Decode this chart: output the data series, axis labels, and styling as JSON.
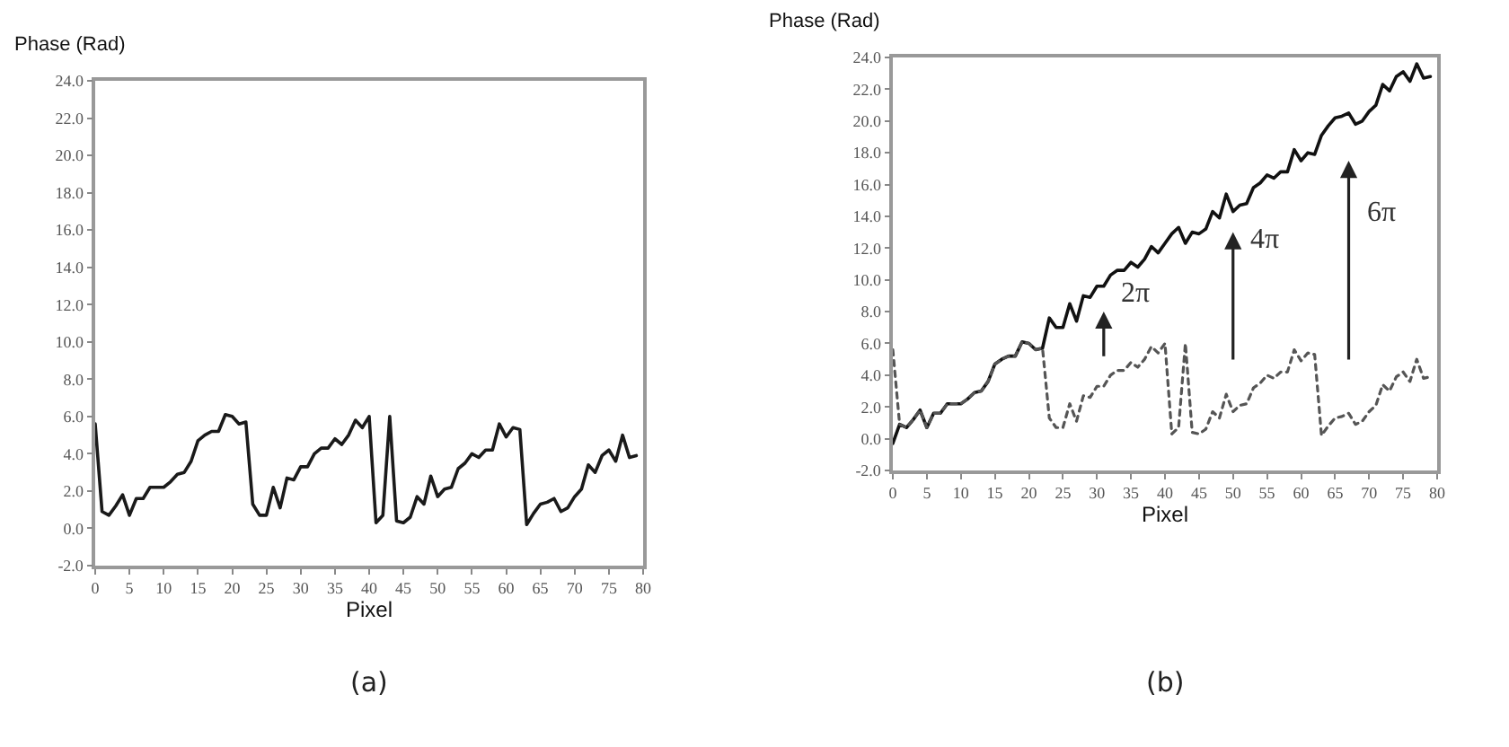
{
  "chart_data": [
    {
      "type": "line",
      "ylabel": "Phase (Rad)",
      "xlabel": "Pixel",
      "annotations": [
        "(a)"
      ],
      "grid": false,
      "marker": "none",
      "line_style": "solid",
      "x": [
        0,
        1,
        2,
        3,
        4,
        5,
        6,
        7,
        8,
        9,
        10,
        11,
        12,
        13,
        14,
        15,
        16,
        17,
        18,
        19,
        20,
        21,
        22,
        23,
        24,
        25,
        26,
        27,
        28,
        29,
        30,
        31,
        32,
        33,
        34,
        35,
        36,
        37,
        38,
        39,
        40,
        41,
        42,
        43,
        44,
        45,
        46,
        47,
        48,
        49,
        50,
        51,
        52,
        53,
        54,
        55,
        56,
        57,
        58,
        59,
        60,
        61,
        62,
        63,
        64,
        65,
        66,
        67,
        68,
        69,
        70,
        71,
        72,
        73,
        74,
        75,
        76,
        77,
        78,
        79
      ],
      "series": [
        {
          "color": "#1a1a1a",
          "values": [
            5.6,
            0.9,
            0.7,
            1.2,
            1.8,
            0.7,
            1.6,
            1.6,
            2.2,
            2.2,
            2.2,
            2.5,
            2.9,
            3.0,
            3.6,
            4.7,
            5.0,
            5.2,
            5.2,
            6.1,
            6.0,
            5.6,
            5.7,
            1.3,
            0.7,
            0.7,
            2.2,
            1.1,
            2.7,
            2.6,
            3.3,
            3.3,
            4.0,
            4.3,
            4.3,
            4.8,
            4.5,
            5.0,
            5.8,
            5.4,
            6.0,
            0.3,
            0.7,
            6.0,
            0.4,
            0.3,
            0.6,
            1.7,
            1.3,
            2.8,
            1.7,
            2.1,
            2.2,
            3.2,
            3.5,
            4.0,
            3.8,
            4.2,
            4.2,
            5.6,
            4.9,
            5.4,
            5.3,
            0.2,
            0.8,
            1.3,
            1.4,
            1.6,
            0.9,
            1.1,
            1.7,
            2.1,
            3.4,
            3.0,
            3.9,
            4.2,
            3.6,
            5.0,
            3.8,
            3.9
          ]
        }
      ],
      "xlim": [
        0,
        80
      ],
      "xticks": [
        0,
        5,
        10,
        15,
        20,
        25,
        30,
        35,
        40,
        45,
        50,
        55,
        60,
        65,
        70,
        75,
        80
      ],
      "ylim": [
        -2,
        24
      ],
      "yticks": [
        {
          "value": -2,
          "label": "-2.0"
        },
        {
          "value": 0,
          "label": "0.0"
        },
        {
          "value": 2,
          "label": "2.0"
        },
        {
          "value": 4,
          "label": "4.0"
        },
        {
          "value": 6,
          "label": "6.0"
        },
        {
          "value": 8,
          "label": "8.0"
        },
        {
          "value": 10,
          "label": "10.0"
        },
        {
          "value": 12,
          "label": "12.0"
        },
        {
          "value": 14,
          "label": "14.0"
        },
        {
          "value": 16,
          "label": "16.0"
        },
        {
          "value": 18,
          "label": "18.0"
        },
        {
          "value": 20,
          "label": "20.0"
        },
        {
          "value": 22,
          "label": "22.0"
        },
        {
          "value": 24,
          "label": "24.0"
        }
      ]
    },
    {
      "type": "line",
      "ylabel": "Phase (Rad)",
      "xlabel": "Pixel",
      "grid": false,
      "marker": "none",
      "annotations": [
        "(b)",
        "2π",
        "4π",
        "6π"
      ],
      "x": [
        0,
        1,
        2,
        3,
        4,
        5,
        6,
        7,
        8,
        9,
        10,
        11,
        12,
        13,
        14,
        15,
        16,
        17,
        18,
        19,
        20,
        21,
        22,
        23,
        24,
        25,
        26,
        27,
        28,
        29,
        30,
        31,
        32,
        33,
        34,
        35,
        36,
        37,
        38,
        39,
        40,
        41,
        42,
        43,
        44,
        45,
        46,
        47,
        48,
        49,
        50,
        51,
        52,
        53,
        54,
        55,
        56,
        57,
        58,
        59,
        60,
        61,
        62,
        63,
        64,
        65,
        66,
        67,
        68,
        69,
        70,
        71,
        72,
        73,
        74,
        75,
        76,
        77,
        78,
        79
      ],
      "series": [
        {
          "color": "#111111",
          "line_style": "solid",
          "values": [
            -0.3,
            0.9,
            0.7,
            1.2,
            1.8,
            0.7,
            1.6,
            1.6,
            2.2,
            2.2,
            2.2,
            2.5,
            2.9,
            3.0,
            3.6,
            4.7,
            5.0,
            5.2,
            5.2,
            6.1,
            6.0,
            5.6,
            5.7,
            7.6,
            7.0,
            7.0,
            8.5,
            7.4,
            9.0,
            8.9,
            9.6,
            9.6,
            10.3,
            10.6,
            10.6,
            11.1,
            10.8,
            11.3,
            12.1,
            11.7,
            12.3,
            12.9,
            13.3,
            12.3,
            13.0,
            12.9,
            13.2,
            14.3,
            13.9,
            15.4,
            14.3,
            14.7,
            14.8,
            15.8,
            16.1,
            16.6,
            16.4,
            16.8,
            16.8,
            18.2,
            17.5,
            18.0,
            17.9,
            19.1,
            19.7,
            20.2,
            20.3,
            20.5,
            19.8,
            20.0,
            20.6,
            21.0,
            22.3,
            21.9,
            22.8,
            23.1,
            22.5,
            23.6,
            22.7,
            22.8
          ]
        },
        {
          "color": "#555555",
          "line_style": "dotted",
          "values": [
            5.6,
            0.9,
            0.7,
            1.2,
            1.8,
            0.7,
            1.6,
            1.6,
            2.2,
            2.2,
            2.2,
            2.5,
            2.9,
            3.0,
            3.6,
            4.7,
            5.0,
            5.2,
            5.2,
            6.1,
            6.0,
            5.6,
            5.7,
            1.3,
            0.7,
            0.7,
            2.2,
            1.1,
            2.7,
            2.6,
            3.3,
            3.3,
            4.0,
            4.3,
            4.3,
            4.8,
            4.5,
            5.0,
            5.8,
            5.4,
            6.0,
            0.3,
            0.7,
            6.0,
            0.4,
            0.3,
            0.6,
            1.7,
            1.3,
            2.8,
            1.7,
            2.1,
            2.2,
            3.2,
            3.5,
            4.0,
            3.8,
            4.2,
            4.2,
            5.6,
            4.9,
            5.4,
            5.3,
            0.2,
            0.8,
            1.3,
            1.4,
            1.6,
            0.9,
            1.1,
            1.7,
            2.1,
            3.4,
            3.0,
            3.9,
            4.2,
            3.6,
            5.0,
            3.8,
            3.9
          ]
        }
      ],
      "xlim": [
        0,
        80
      ],
      "xticks": [
        0,
        5,
        10,
        15,
        20,
        25,
        30,
        35,
        40,
        45,
        50,
        55,
        60,
        65,
        70,
        75,
        80
      ],
      "ylim": [
        -2,
        24
      ],
      "yticks": [
        {
          "value": -2,
          "label": "-2.0"
        },
        {
          "value": 0,
          "label": "0.0"
        },
        {
          "value": 2,
          "label": "2.0"
        },
        {
          "value": 4,
          "label": "4.0"
        },
        {
          "value": 6,
          "label": "6.0"
        },
        {
          "value": 8,
          "label": "8.0"
        },
        {
          "value": 10,
          "label": "10.0"
        },
        {
          "value": 12,
          "label": "12.0"
        },
        {
          "value": 14,
          "label": "14.0"
        },
        {
          "value": 16,
          "label": "16.0"
        },
        {
          "value": 18,
          "label": "18.0"
        },
        {
          "value": 20,
          "label": "20.0"
        },
        {
          "value": 22,
          "label": "22.0"
        },
        {
          "value": 24,
          "label": "24.0"
        }
      ]
    }
  ]
}
